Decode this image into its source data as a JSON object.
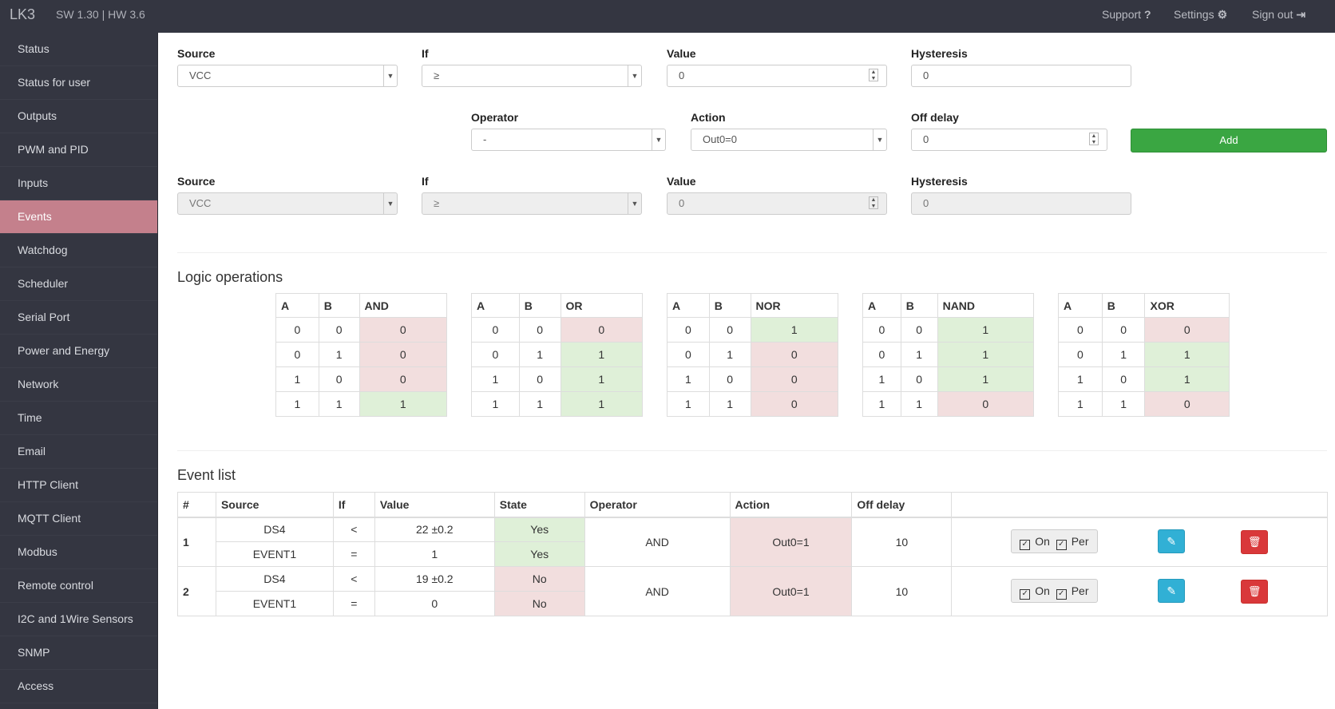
{
  "header": {
    "brand": "LK3",
    "version": "SW 1.30 | HW 3.6",
    "support": "Support",
    "settings": "Settings",
    "signout": "Sign out"
  },
  "sidebar": {
    "items": [
      "Status",
      "Status for user",
      "Outputs",
      "PWM and PID",
      "Inputs",
      "Events",
      "Watchdog",
      "Scheduler",
      "Serial Port",
      "Power and Energy",
      "Network",
      "Time",
      "Email",
      "HTTP Client",
      "MQTT Client",
      "Modbus",
      "Remote control",
      "I2C and 1Wire Sensors",
      "SNMP",
      "Access"
    ],
    "active": "Events"
  },
  "form": {
    "row1": {
      "source_label": "Source",
      "source": "VCC",
      "if_label": "If",
      "if": "≥",
      "value_label": "Value",
      "value": "0",
      "hyst_label": "Hysteresis",
      "hyst": "0"
    },
    "row2": {
      "operator_label": "Operator",
      "operator": "-",
      "action_label": "Action",
      "action": "Out0=0",
      "offdelay_label": "Off delay",
      "offdelay": "0",
      "add": "Add"
    },
    "row3": {
      "source_label": "Source",
      "source": "VCC",
      "if_label": "If",
      "if": "≥",
      "value_label": "Value",
      "value": "0",
      "hyst_label": "Hysteresis",
      "hyst": "0"
    }
  },
  "logic": {
    "title": "Logic operations",
    "tables": [
      {
        "op": "AND",
        "rows": [
          [
            "0",
            "0",
            "0"
          ],
          [
            "0",
            "1",
            "0"
          ],
          [
            "1",
            "0",
            "0"
          ],
          [
            "1",
            "1",
            "1"
          ]
        ]
      },
      {
        "op": "OR",
        "rows": [
          [
            "0",
            "0",
            "0"
          ],
          [
            "0",
            "1",
            "1"
          ],
          [
            "1",
            "0",
            "1"
          ],
          [
            "1",
            "1",
            "1"
          ]
        ]
      },
      {
        "op": "NOR",
        "rows": [
          [
            "0",
            "0",
            "1"
          ],
          [
            "0",
            "1",
            "0"
          ],
          [
            "1",
            "0",
            "0"
          ],
          [
            "1",
            "1",
            "0"
          ]
        ]
      },
      {
        "op": "NAND",
        "rows": [
          [
            "0",
            "0",
            "1"
          ],
          [
            "0",
            "1",
            "1"
          ],
          [
            "1",
            "0",
            "1"
          ],
          [
            "1",
            "1",
            "0"
          ]
        ]
      },
      {
        "op": "XOR",
        "rows": [
          [
            "0",
            "0",
            "0"
          ],
          [
            "0",
            "1",
            "1"
          ],
          [
            "1",
            "0",
            "1"
          ],
          [
            "1",
            "1",
            "0"
          ]
        ]
      }
    ],
    "col_a": "A",
    "col_b": "B"
  },
  "events": {
    "title": "Event list",
    "headers": [
      "#",
      "Source",
      "If",
      "Value",
      "State",
      "Operator",
      "Action",
      "Off delay"
    ],
    "rows": [
      {
        "num": "1",
        "src1": "DS4",
        "if1": "<",
        "val1": "22 ±0.2",
        "st1": "Yes",
        "src2": "EVENT1",
        "if2": "=",
        "val2": "1",
        "st2": "Yes",
        "op": "AND",
        "action": "Out0=1",
        "delay": "10",
        "on": "On",
        "per": "Per"
      },
      {
        "num": "2",
        "src1": "DS4",
        "if1": "<",
        "val1": "19 ±0.2",
        "st1": "No",
        "src2": "EVENT1",
        "if2": "=",
        "val2": "0",
        "st2": "No",
        "op": "AND",
        "action": "Out0=1",
        "delay": "10",
        "on": "On",
        "per": "Per"
      }
    ]
  }
}
